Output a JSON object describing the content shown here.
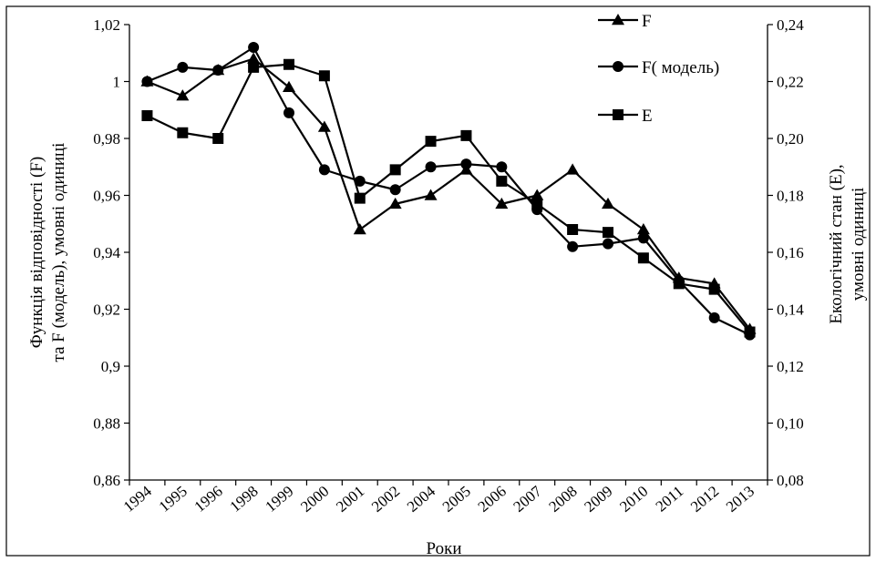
{
  "chart_data": {
    "type": "line",
    "title": "",
    "categories": [
      "1994",
      "1995",
      "1996",
      "1998",
      "1999",
      "2000",
      "2001",
      "2002",
      "2004",
      "2005",
      "2006",
      "2007",
      "2008",
      "2009",
      "2010",
      "2011",
      "2012",
      "2013"
    ],
    "xlabel": "Роки",
    "ylabel_left_line1": "Функція відповідності (F)",
    "ylabel_left_line2": "та F (модель), умовні одиниці",
    "ylabel_right_line1": "Екологічний стан (Е),",
    "ylabel_right_line2": "умовні одиниці",
    "y_left": {
      "min": 0.86,
      "max": 1.02,
      "ticks": [
        "0,86",
        "0,88",
        "0,9",
        "0,92",
        "0,94",
        "0,96",
        "0,98",
        "1",
        "1,02"
      ],
      "tick_values": [
        0.86,
        0.88,
        0.9,
        0.92,
        0.94,
        0.96,
        0.98,
        1.0,
        1.02
      ]
    },
    "y_right": {
      "min": 0.08,
      "max": 0.24,
      "ticks": [
        "0,08",
        "0,10",
        "0,12",
        "0,14",
        "0,16",
        "0,18",
        "0,20",
        "0,22",
        "0,24"
      ],
      "tick_values": [
        0.08,
        0.1,
        0.12,
        0.14,
        0.16,
        0.18,
        0.2,
        0.22,
        0.24
      ]
    },
    "grid": false,
    "legend_position": "top-right",
    "series": [
      {
        "name": "F",
        "marker": "triangle",
        "axis": "left",
        "values": [
          1.0,
          0.995,
          1.004,
          1.008,
          0.998,
          0.984,
          0.948,
          0.957,
          0.96,
          0.969,
          0.957,
          0.96,
          0.969,
          0.957,
          0.948,
          0.931,
          0.929,
          0.913
        ]
      },
      {
        "name": "F( модель)",
        "marker": "circle",
        "axis": "left",
        "values": [
          1.0,
          1.005,
          1.004,
          1.012,
          0.989,
          0.969,
          0.965,
          0.962,
          0.97,
          0.971,
          0.97,
          0.955,
          0.942,
          0.943,
          0.945,
          0.93,
          0.917,
          0.911
        ]
      },
      {
        "name": "E",
        "marker": "square",
        "axis": "right",
        "values": [
          0.208,
          0.202,
          0.2,
          0.225,
          0.226,
          0.222,
          0.179,
          0.189,
          0.199,
          0.201,
          0.185,
          0.177,
          0.168,
          0.167,
          0.158,
          0.149,
          0.147,
          0.132
        ]
      }
    ]
  }
}
